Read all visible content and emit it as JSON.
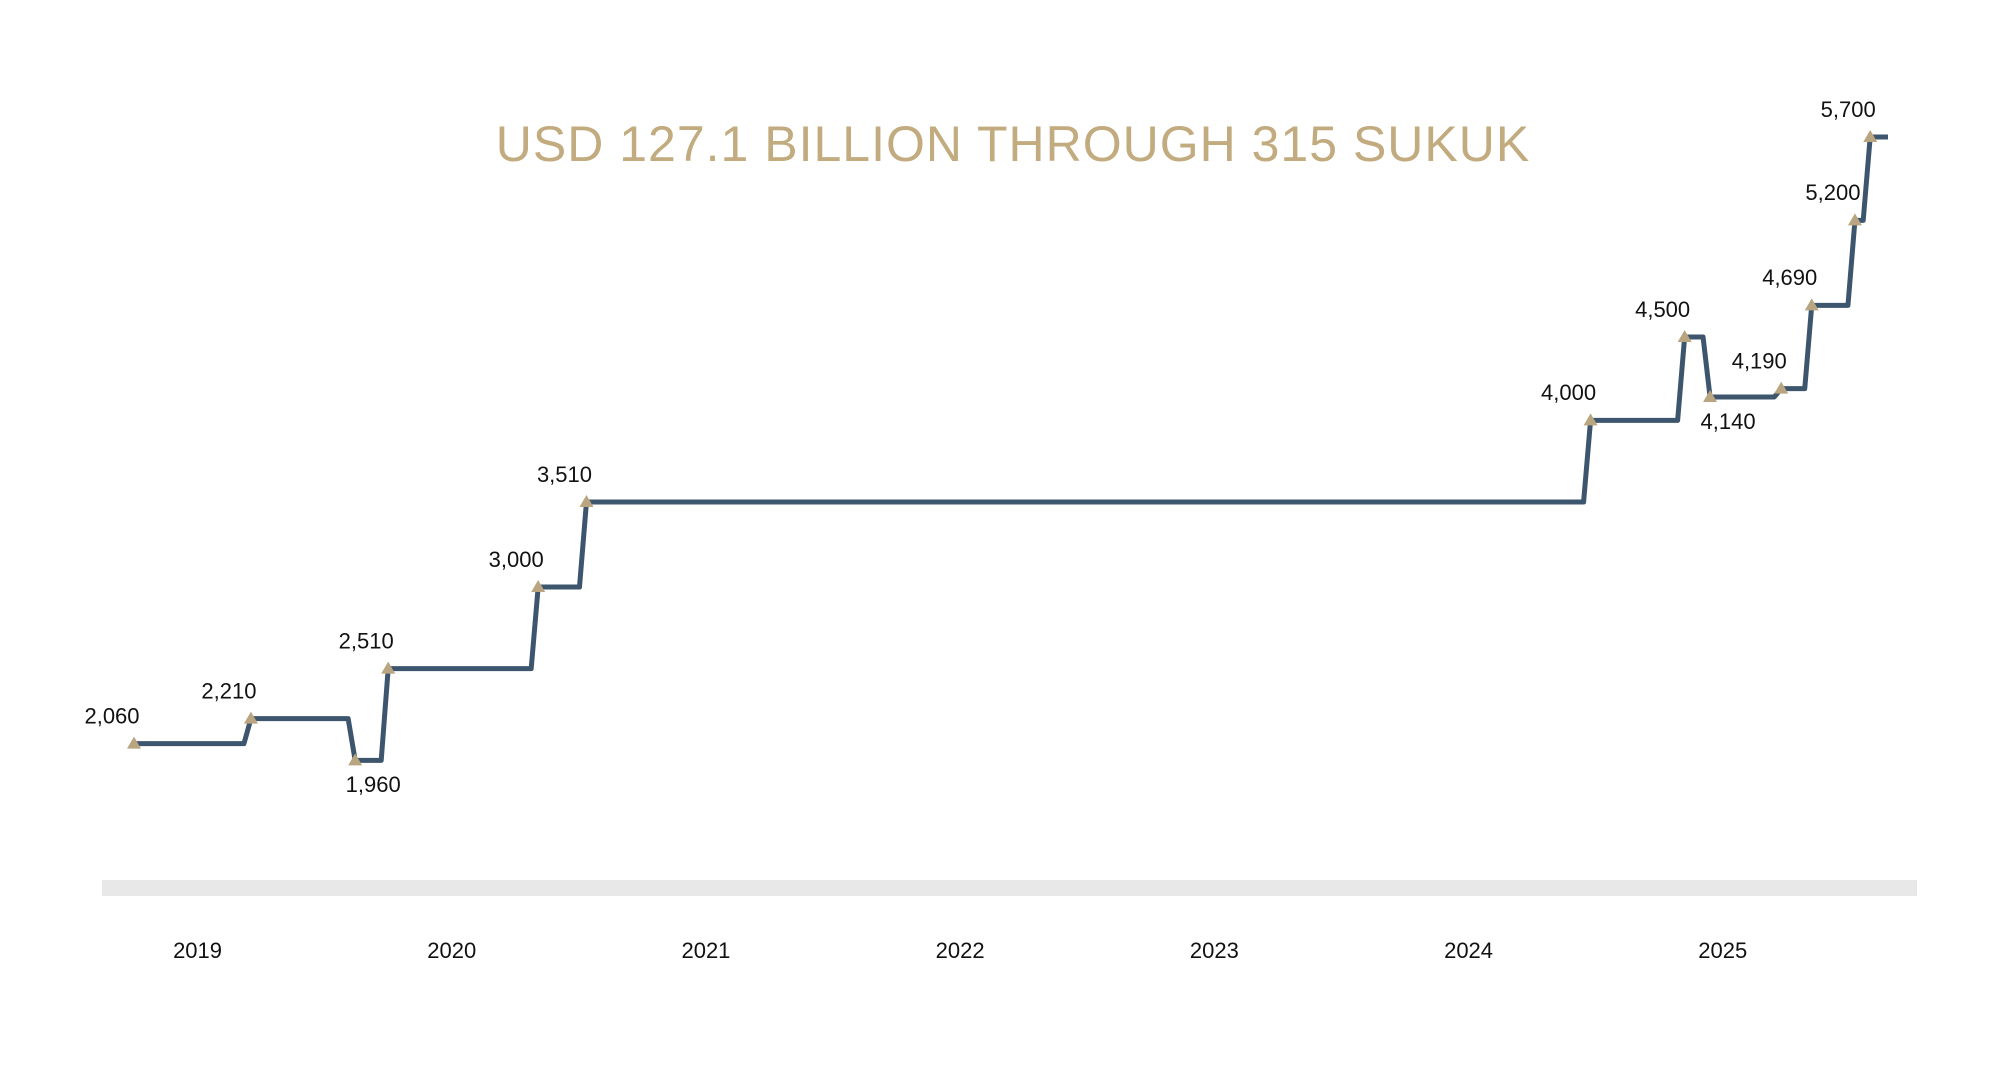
{
  "chart_data": {
    "type": "step",
    "title": "USD 127.1 BILLION THROUGH 315 SUKUK",
    "x": [
      2018.75,
      2019.21,
      2019.62,
      2019.75,
      2020.34,
      2020.53,
      2024.48,
      2024.85,
      2024.95,
      2025.23,
      2025.35,
      2025.52,
      2025.58
    ],
    "values": [
      2060,
      2210,
      1960,
      2510,
      3000,
      3510,
      4000,
      4500,
      4140,
      4190,
      4690,
      5200,
      5700
    ],
    "value_labels": [
      "2,060",
      "2,210",
      "1,960",
      "2,510",
      "3,000",
      "3,510",
      "4,000",
      "4,500",
      "4,140",
      "4,190",
      "4,690",
      "5,200",
      "5,700"
    ],
    "xlim": [
      2018.75,
      2025.65
    ],
    "xticks": [
      2019,
      2020,
      2021,
      2022,
      2023,
      2024,
      2025
    ],
    "ylim": [
      1500,
      6000
    ],
    "line_color": "#3d566e",
    "marker_color": "#b9a57f"
  }
}
